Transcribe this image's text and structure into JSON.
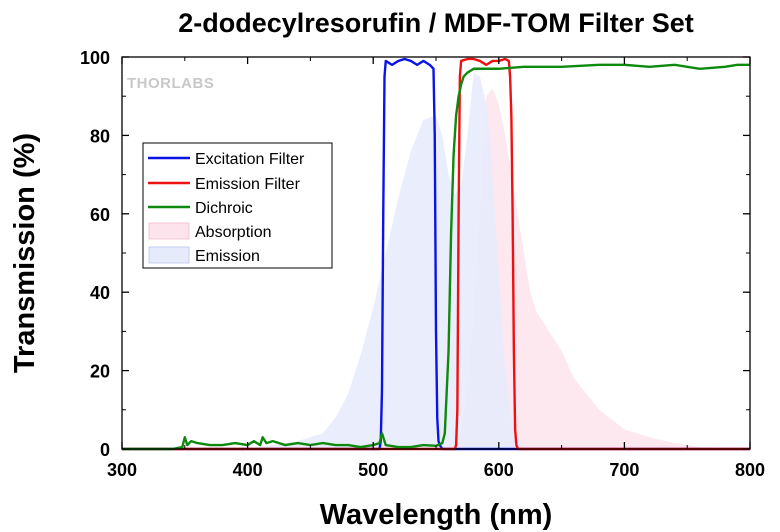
{
  "chart_data": {
    "type": "area",
    "title": "2-dodecylresorufin / MDF-TOM Filter Set",
    "xlabel": "Wavelength (nm)",
    "ylabel": "Transmission (%)",
    "xlim": [
      300,
      800
    ],
    "ylim": [
      0,
      100
    ],
    "xticks": [
      "300",
      "400",
      "500",
      "600",
      "700",
      "800"
    ],
    "yticks": [
      "0",
      "20",
      "40",
      "60",
      "80",
      "100"
    ],
    "grid": false,
    "legend_position": "upper-left",
    "watermark": "THORLABS",
    "series": [
      {
        "name": "Excitation Filter",
        "kind": "line",
        "color": "#0a14e6",
        "x": [
          300,
          505,
          506,
          507,
          508,
          509,
          510,
          515,
          520,
          525,
          530,
          535,
          540,
          545,
          548,
          549,
          550,
          551,
          552,
          553,
          554,
          555,
          560,
          800
        ],
        "y": [
          0,
          0,
          2,
          15,
          60,
          95,
          99,
          98,
          99,
          99.5,
          99,
          98,
          99,
          98,
          97,
          80,
          30,
          8,
          2,
          1,
          0.5,
          0,
          0,
          0
        ]
      },
      {
        "name": "Emission Filter",
        "kind": "line",
        "color": "#ee1111",
        "x": [
          300,
          565,
          566,
          567,
          568,
          569,
          570,
          575,
          580,
          585,
          590,
          595,
          600,
          605,
          608,
          609,
          610,
          611,
          612,
          613,
          614,
          615,
          616,
          620,
          800
        ],
        "y": [
          0,
          0,
          1,
          10,
          60,
          95,
          99,
          99.5,
          99.5,
          99,
          98,
          99,
          99,
          99.5,
          99,
          95,
          85,
          60,
          25,
          5,
          1,
          0.2,
          0,
          0,
          0
        ]
      },
      {
        "name": "Dichroic",
        "kind": "line",
        "color": "#0d8a0d",
        "x": [
          300,
          340,
          348,
          350,
          352,
          355,
          360,
          370,
          380,
          390,
          400,
          405,
          410,
          412,
          415,
          420,
          430,
          440,
          450,
          460,
          470,
          480,
          490,
          500,
          505,
          507,
          510,
          520,
          530,
          540,
          550,
          555,
          557,
          560,
          562,
          564,
          566,
          568,
          570,
          572,
          575,
          580,
          590,
          600,
          620,
          650,
          680,
          700,
          720,
          740,
          760,
          780,
          790,
          800
        ],
        "y": [
          0,
          0,
          0.5,
          3,
          1,
          2,
          1.5,
          1,
          1,
          1.5,
          1,
          2,
          1,
          3,
          1.5,
          2,
          1,
          1.5,
          1,
          1.5,
          1,
          1,
          0.5,
          1,
          1.5,
          4,
          1,
          0.5,
          0.5,
          1,
          0.8,
          1.5,
          4,
          25,
          55,
          75,
          85,
          90,
          93,
          95,
          96,
          97,
          97,
          97,
          97.5,
          97.5,
          98,
          98,
          97.5,
          98,
          97,
          97.5,
          98,
          98
        ]
      },
      {
        "name": "Absorption",
        "kind": "area",
        "color": "#fde4ec",
        "x": [
          560,
          570,
          575,
          580,
          585,
          590,
          595,
          600,
          605,
          610,
          615,
          620,
          625,
          630,
          640,
          650,
          660,
          680,
          700,
          720,
          740,
          760,
          780
        ],
        "y": [
          1,
          5,
          15,
          35,
          60,
          90,
          92,
          88,
          80,
          70,
          60,
          50,
          40,
          35,
          30,
          25,
          18,
          10,
          5,
          3,
          1.5,
          0.5,
          0
        ]
      },
      {
        "name": "Emission",
        "kind": "area",
        "color": "#e6ebfb",
        "x": [
          400,
          420,
          440,
          460,
          470,
          480,
          490,
          500,
          510,
          520,
          530,
          540,
          550,
          555,
          560,
          565,
          570,
          575,
          580,
          585,
          590,
          595,
          600,
          605,
          610,
          620
        ],
        "y": [
          0,
          1,
          2,
          4,
          8,
          14,
          24,
          36,
          50,
          64,
          76,
          84,
          85,
          80,
          70,
          65,
          67,
          80,
          96,
          95,
          88,
          70,
          45,
          20,
          8,
          0
        ]
      }
    ]
  }
}
